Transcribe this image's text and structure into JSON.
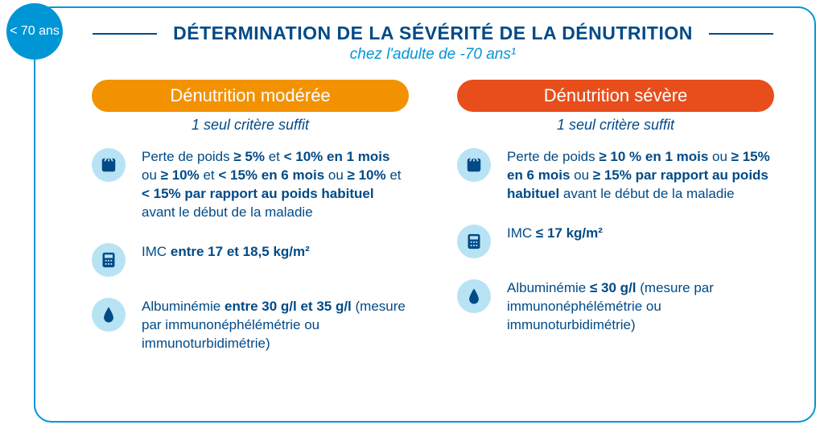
{
  "badge": "< 70 ans",
  "title": "DÉTERMINATION DE LA SÉVÉRITÉ DE LA DÉNUTRITION",
  "subtitle": "chez l'adulte de -70 ans¹",
  "colors": {
    "brand_dark": "#004a87",
    "brand_light": "#0096d6",
    "icon_bg": "#b8e3f4",
    "pill_moderate": "#f39200",
    "pill_severe": "#e84e1b",
    "background": "#ffffff"
  },
  "columns": {
    "moderate": {
      "pill_label": "Dénutrition modérée",
      "subtitle": "1 seul critère suffit",
      "criteria": {
        "weight": "Perte de poids <b>≥ 5%</b> et <b>< 10% en 1 mois</b> ou <b>≥ 10%</b> et <b>< 15% en 6 mois</b> ou <b>≥ 10%</b> et <b>< 15% par rapport au poids habituel</b> avant le début de la maladie",
        "imc": "IMC <b>entre 17 et 18,5 kg/m²</b>",
        "albumin": "Albuminémie <b>entre 30 g/l et 35 g/l</b> (mesure par immunonéphélémétrie ou immunoturbidimétrie)"
      }
    },
    "severe": {
      "pill_label": "Dénutrition sévère",
      "subtitle": "1 seul critère suffit",
      "criteria": {
        "weight": "Perte de poids <b>≥ 10 % en 1 mois</b> ou <b>≥ 15% en 6 mois</b> ou <b>≥ 15% par rapport au poids habituel</b> avant le début de la maladie",
        "imc": "IMC <b>≤ 17 kg/m²</b>",
        "albumin": "Albuminémie <b>≤ 30 g/l</b> (mesure par immunonéphélémétrie ou immunoturbidimétrie)"
      }
    }
  }
}
